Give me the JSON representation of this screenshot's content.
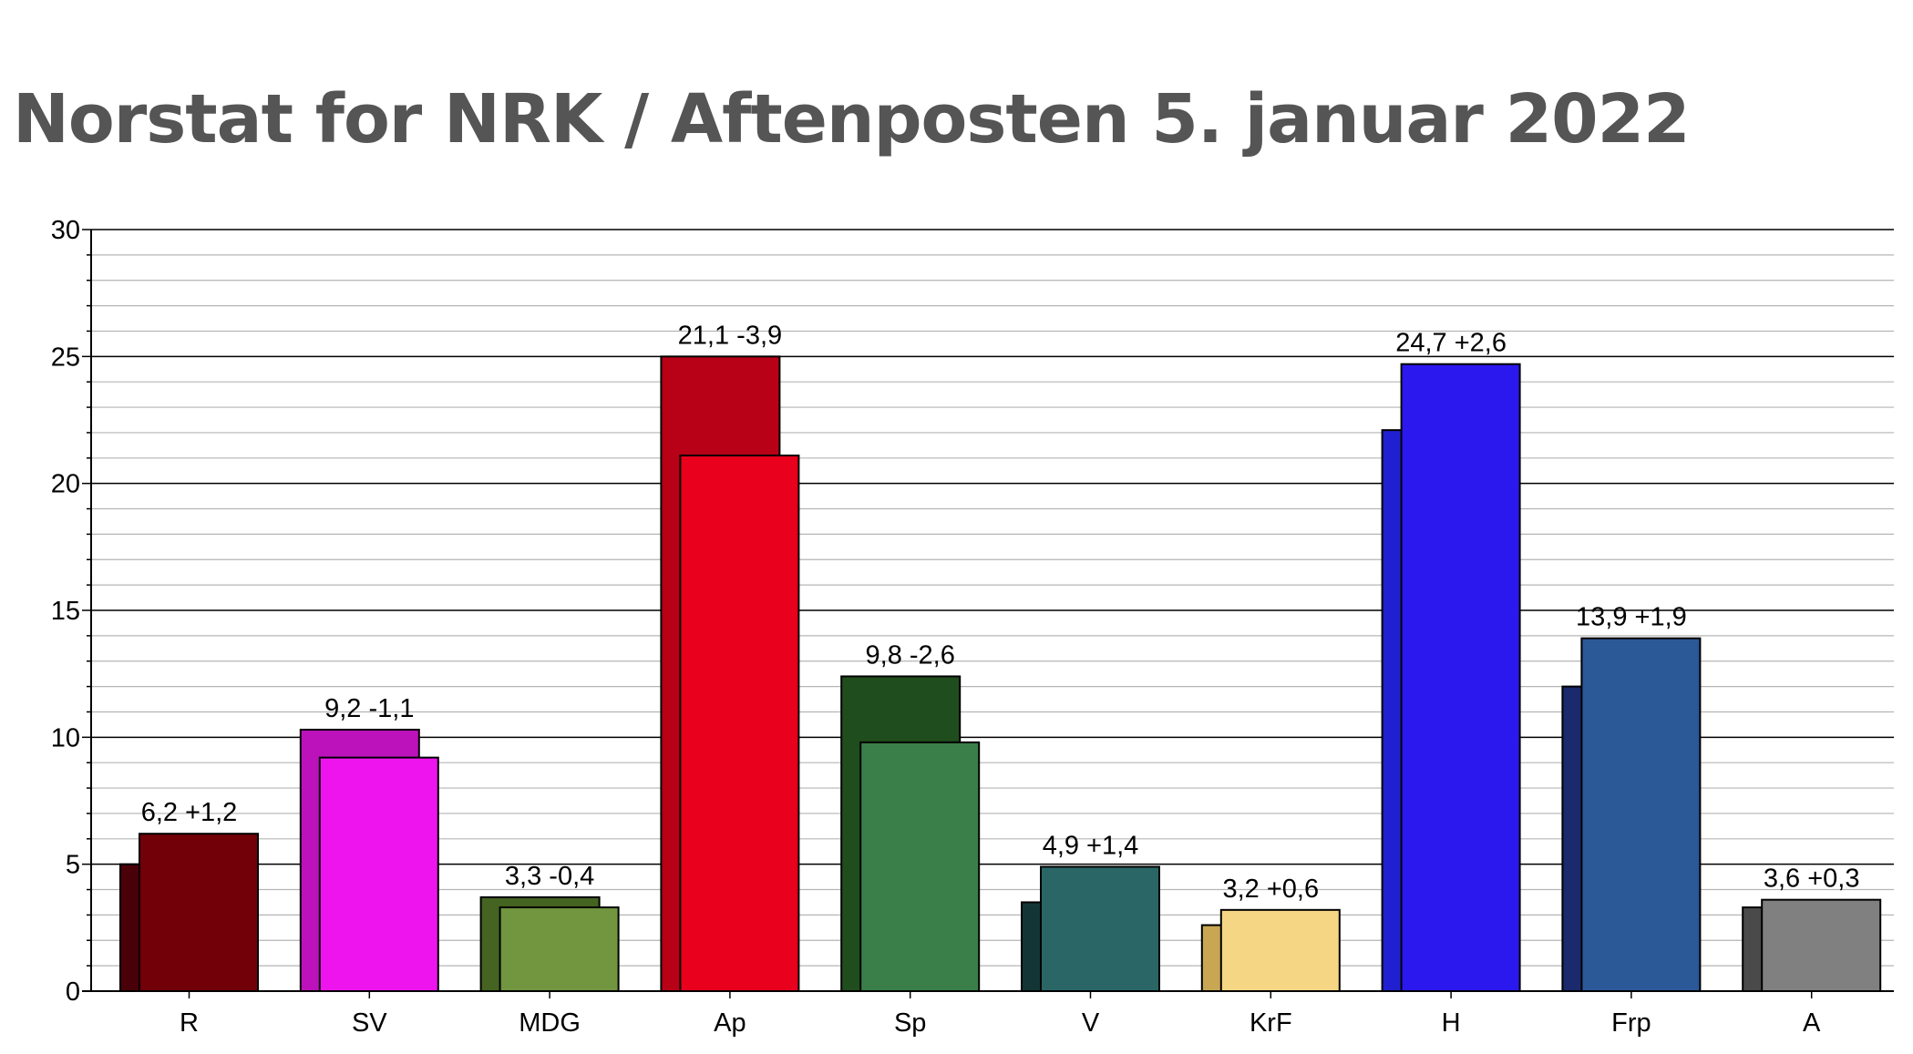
{
  "title": "Norstat for NRK / Aftenposten 5. januar 2022",
  "chart_data": {
    "type": "bar",
    "title": "Norstat for NRK / Aftenposten 5. januar 2022",
    "xlabel": "",
    "ylabel": "",
    "ylim": [
      0,
      30
    ],
    "yticks": [
      "0",
      "5",
      "10",
      "15",
      "20",
      "25",
      "30"
    ],
    "grid": true,
    "categories": [
      "R",
      "SV",
      "MDG",
      "Ap",
      "Sp",
      "V",
      "KrF",
      "H",
      "Frp",
      "A"
    ],
    "series": [
      {
        "values": [
          5.0,
          10.3,
          3.7,
          25.0,
          12.4,
          3.5,
          2.6,
          22.1,
          12.0,
          3.3
        ],
        "colors": [
          "#4a0008",
          "#bb12bb",
          "#456321",
          "#b80016",
          "#1f4d1d",
          "#133535",
          "#c8a653",
          "#2020d0",
          "#1a2a6c",
          "#4a4a4a"
        ]
      },
      {
        "values": [
          6.2,
          9.2,
          3.3,
          21.1,
          9.8,
          4.9,
          3.2,
          24.7,
          13.9,
          3.6
        ],
        "colors": [
          "#720008",
          "#ee14ee",
          "#729540",
          "#e8001c",
          "#3a7f4a",
          "#2a6666",
          "#f4d684",
          "#2b18ee",
          "#2b5896",
          "#808080"
        ]
      }
    ],
    "data_labels": [
      "6,2 +1,2",
      "9,2 -1,1",
      "3,3 -0,4",
      "21,1 -3,9",
      "9,8 -2,6",
      "4,9 +1,4",
      "3,2 +0,6",
      "24,7 +2,6",
      "13,9 +1,9",
      "3,6 +0,3"
    ]
  }
}
